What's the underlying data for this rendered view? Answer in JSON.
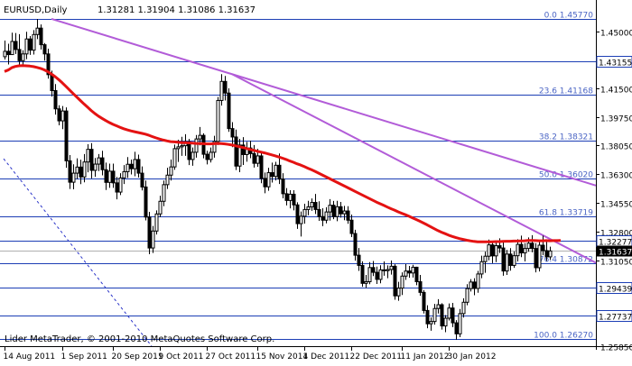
{
  "header": {
    "symbol": "EURUSD,Daily",
    "ohlc": "1.31281 1.31904 1.31086 1.31637"
  },
  "footer": {
    "copyright": "Lider MetaTrader, © 2001-2010 MetaQuotes Software Corp."
  },
  "colors": {
    "background": "#ffffff",
    "frame": "#000000",
    "candle": "#000000",
    "moving_average": "#e41212",
    "trendline": "#b25cd8",
    "fib_line": "#1c3eb5",
    "fib_label": "#4a64c4",
    "crosshair": "#2a34c8",
    "current_price_bg": "#000000",
    "current_price_fg": "#ffffff",
    "level_box_bg": "#ffffff"
  },
  "chart_data": {
    "type": "candlestick",
    "title": "EURUSD,Daily",
    "ylim": [
      1.2585,
      1.4668
    ],
    "y_ticks": [
      "1.45000",
      "1.43155",
      "1.41500",
      "1.39750",
      "1.38050",
      "1.36300",
      "1.34550",
      "1.32800",
      "1.32277",
      "1.31637",
      "1.31050",
      "1.29439",
      "1.27737",
      "1.25850"
    ],
    "x_ticks": [
      "14 Aug 2011",
      "1 Sep 2011",
      "20 Sep 2011",
      "9 Oct 2011",
      "27 Oct 2011",
      "15 Nov 2011",
      "4 Dec 2011",
      "22 Dec 2011",
      "11 Jan 2012",
      "30 Jan 2012"
    ],
    "current_price": "1.31637",
    "highlighted_levels": [
      "1.43155",
      "1.32277",
      "1.29439",
      "1.27737"
    ],
    "fibonacci_levels": [
      {
        "label": "0.0 1.45770",
        "price": 1.4577
      },
      {
        "label": "23.6 1.41168",
        "price": 1.41168
      },
      {
        "label": "38.2 1.38321",
        "price": 1.38321
      },
      {
        "label": "50.0 1.36020",
        "price": 1.3602
      },
      {
        "label": "61.8 1.33719",
        "price": 1.33719
      },
      {
        "label": "76.4 1.30872",
        "price": 1.30872
      },
      {
        "label": "100.0 1.26270",
        "price": 1.2627
      }
    ],
    "ohlc": [
      [
        1.4345,
        1.4443,
        1.4328,
        1.4378
      ],
      [
        1.4378,
        1.4424,
        1.4298,
        1.4358
      ],
      [
        1.4358,
        1.4491,
        1.4356,
        1.4438
      ],
      [
        1.4438,
        1.4489,
        1.4362,
        1.4389
      ],
      [
        1.4389,
        1.4482,
        1.4296,
        1.4321
      ],
      [
        1.4321,
        1.4384,
        1.4298,
        1.4362
      ],
      [
        1.4362,
        1.4497,
        1.433,
        1.4453
      ],
      [
        1.4453,
        1.4471,
        1.4356,
        1.4385
      ],
      [
        1.4385,
        1.4507,
        1.4358,
        1.448
      ],
      [
        1.448,
        1.4575,
        1.4452,
        1.4519
      ],
      [
        1.4519,
        1.4541,
        1.4389,
        1.4418
      ],
      [
        1.4418,
        1.4428,
        1.4321,
        1.4362
      ],
      [
        1.4362,
        1.4394,
        1.4212,
        1.4236
      ],
      [
        1.4236,
        1.426,
        1.4103,
        1.4139
      ],
      [
        1.4139,
        1.4179,
        1.3993,
        1.4028
      ],
      [
        1.4028,
        1.405,
        1.3928,
        1.3955
      ],
      [
        1.3955,
        1.4045,
        1.3905,
        1.4015
      ],
      [
        1.4015,
        1.4037,
        1.367,
        1.3712
      ],
      [
        1.3712,
        1.3747,
        1.3541,
        1.3582
      ],
      [
        1.3582,
        1.3691,
        1.3539,
        1.3637
      ],
      [
        1.3637,
        1.3727,
        1.3602,
        1.3674
      ],
      [
        1.3674,
        1.3719,
        1.357,
        1.3614
      ],
      [
        1.3614,
        1.3753,
        1.3581,
        1.3705
      ],
      [
        1.3705,
        1.3813,
        1.3642,
        1.3782
      ],
      [
        1.3782,
        1.382,
        1.3605,
        1.3654
      ],
      [
        1.3654,
        1.3729,
        1.3615,
        1.3692
      ],
      [
        1.3692,
        1.3753,
        1.365,
        1.373
      ],
      [
        1.373,
        1.3773,
        1.3624,
        1.3658
      ],
      [
        1.3658,
        1.3701,
        1.3535,
        1.3581
      ],
      [
        1.3581,
        1.3695,
        1.3548,
        1.3649
      ],
      [
        1.3649,
        1.3695,
        1.3548,
        1.3578
      ],
      [
        1.3578,
        1.3614,
        1.3478,
        1.3522
      ],
      [
        1.3522,
        1.3637,
        1.3504,
        1.3608
      ],
      [
        1.3608,
        1.3686,
        1.3571,
        1.3646
      ],
      [
        1.3646,
        1.3735,
        1.3608,
        1.3691
      ],
      [
        1.3691,
        1.372,
        1.3629,
        1.3664
      ],
      [
        1.3664,
        1.3767,
        1.3618,
        1.372
      ],
      [
        1.372,
        1.375,
        1.3611,
        1.3637
      ],
      [
        1.3637,
        1.3678,
        1.3532,
        1.3553
      ],
      [
        1.3553,
        1.3592,
        1.335,
        1.337
      ],
      [
        1.337,
        1.3402,
        1.3144,
        1.3182
      ],
      [
        1.3182,
        1.3316,
        1.3152,
        1.3285
      ],
      [
        1.3285,
        1.3411,
        1.3264,
        1.3389
      ],
      [
        1.3389,
        1.35,
        1.337,
        1.3466
      ],
      [
        1.3466,
        1.3592,
        1.3436,
        1.3567
      ],
      [
        1.3567,
        1.367,
        1.3541,
        1.3625
      ],
      [
        1.3625,
        1.372,
        1.3592,
        1.3675
      ],
      [
        1.3675,
        1.3811,
        1.3657,
        1.3786
      ],
      [
        1.3786,
        1.384,
        1.3705,
        1.3797
      ],
      [
        1.3797,
        1.3858,
        1.3742,
        1.3804
      ],
      [
        1.3804,
        1.3874,
        1.3742,
        1.3828
      ],
      [
        1.3828,
        1.3845,
        1.3686,
        1.372
      ],
      [
        1.372,
        1.3793,
        1.3682,
        1.3764
      ],
      [
        1.3764,
        1.3869,
        1.3731,
        1.3845
      ],
      [
        1.3845,
        1.3918,
        1.3806,
        1.3867
      ],
      [
        1.3867,
        1.3879,
        1.3727,
        1.3752
      ],
      [
        1.3752,
        1.3773,
        1.369,
        1.372
      ],
      [
        1.372,
        1.3793,
        1.3702,
        1.3764
      ],
      [
        1.3764,
        1.3864,
        1.3731,
        1.383
      ],
      [
        1.383,
        1.41,
        1.3809,
        1.4079
      ],
      [
        1.4079,
        1.4239,
        1.4048,
        1.4195
      ],
      [
        1.4195,
        1.4228,
        1.4079,
        1.4124
      ],
      [
        1.4124,
        1.4153,
        1.3888,
        1.3908
      ],
      [
        1.3908,
        1.3947,
        1.3795,
        1.3857
      ],
      [
        1.3857,
        1.3902,
        1.3656,
        1.368
      ],
      [
        1.368,
        1.3846,
        1.3643,
        1.3808
      ],
      [
        1.3808,
        1.3856,
        1.3687,
        1.375
      ],
      [
        1.375,
        1.3827,
        1.3707,
        1.379
      ],
      [
        1.379,
        1.3835,
        1.3728,
        1.3756
      ],
      [
        1.3756,
        1.3808,
        1.3671,
        1.3697
      ],
      [
        1.3697,
        1.3785,
        1.3676,
        1.3742
      ],
      [
        1.3742,
        1.3759,
        1.3576,
        1.3605
      ],
      [
        1.3605,
        1.3641,
        1.3515,
        1.3554
      ],
      [
        1.3554,
        1.367,
        1.353,
        1.364
      ],
      [
        1.364,
        1.3701,
        1.358,
        1.3617
      ],
      [
        1.3617,
        1.3706,
        1.3593,
        1.3685
      ],
      [
        1.3685,
        1.3757,
        1.3571,
        1.3601
      ],
      [
        1.3601,
        1.3637,
        1.3484,
        1.3512
      ],
      [
        1.3512,
        1.3546,
        1.3441,
        1.3471
      ],
      [
        1.3471,
        1.3533,
        1.3423,
        1.3509
      ],
      [
        1.3509,
        1.3533,
        1.3411,
        1.3444
      ],
      [
        1.3444,
        1.346,
        1.3298,
        1.333
      ],
      [
        1.333,
        1.3404,
        1.3252,
        1.3375
      ],
      [
        1.3375,
        1.3451,
        1.333,
        1.3416
      ],
      [
        1.3416,
        1.3469,
        1.3381,
        1.3432
      ],
      [
        1.3432,
        1.3483,
        1.3408,
        1.3459
      ],
      [
        1.3459,
        1.3511,
        1.3389,
        1.3416
      ],
      [
        1.3416,
        1.3466,
        1.3347,
        1.3373
      ],
      [
        1.3373,
        1.3424,
        1.3315,
        1.3351
      ],
      [
        1.3351,
        1.343,
        1.3332,
        1.3401
      ],
      [
        1.3401,
        1.3479,
        1.3348,
        1.3442
      ],
      [
        1.3442,
        1.3468,
        1.3357,
        1.3373
      ],
      [
        1.3373,
        1.3469,
        1.3345,
        1.3433
      ],
      [
        1.3433,
        1.3462,
        1.3367,
        1.339
      ],
      [
        1.339,
        1.3438,
        1.3351,
        1.3407
      ],
      [
        1.3407,
        1.3436,
        1.3329,
        1.3351
      ],
      [
        1.3351,
        1.3385,
        1.3248,
        1.327
      ],
      [
        1.327,
        1.3293,
        1.3105,
        1.3138
      ],
      [
        1.3138,
        1.3182,
        1.3043,
        1.3076
      ],
      [
        1.3076,
        1.3101,
        1.2946,
        1.2967
      ],
      [
        1.2967,
        1.3018,
        1.2939,
        1.2977
      ],
      [
        1.2977,
        1.3096,
        1.2962,
        1.3063
      ],
      [
        1.3063,
        1.3103,
        1.3011,
        1.3034
      ],
      [
        1.3034,
        1.3069,
        1.2963,
        1.2991
      ],
      [
        1.2991,
        1.3077,
        1.2967,
        1.3049
      ],
      [
        1.3049,
        1.31,
        1.3013,
        1.3044
      ],
      [
        1.3044,
        1.3076,
        1.2998,
        1.3051
      ],
      [
        1.3051,
        1.3106,
        1.302,
        1.3071
      ],
      [
        1.3071,
        1.3083,
        1.2867,
        1.2891
      ],
      [
        1.2891,
        1.2976,
        1.2861,
        1.2938
      ],
      [
        1.2938,
        1.3034,
        1.2896,
        1.3011
      ],
      [
        1.3011,
        1.3084,
        1.2988,
        1.3042
      ],
      [
        1.3042,
        1.3073,
        1.3001,
        1.303
      ],
      [
        1.303,
        1.308,
        1.3002,
        1.3065
      ],
      [
        1.3065,
        1.3068,
        1.2956,
        1.2977
      ],
      [
        1.2977,
        1.3018,
        1.2891,
        1.2912
      ],
      [
        1.2912,
        1.2926,
        1.2784,
        1.2802
      ],
      [
        1.2802,
        1.2834,
        1.2694,
        1.2721
      ],
      [
        1.2721,
        1.276,
        1.2679,
        1.2735
      ],
      [
        1.2735,
        1.2842,
        1.2716,
        1.2814
      ],
      [
        1.2814,
        1.2871,
        1.2784,
        1.2837
      ],
      [
        1.2837,
        1.2846,
        1.2686,
        1.2708
      ],
      [
        1.2708,
        1.2774,
        1.267,
        1.2755
      ],
      [
        1.2755,
        1.2845,
        1.2741,
        1.2817
      ],
      [
        1.2817,
        1.2848,
        1.2701,
        1.2727
      ],
      [
        1.2727,
        1.2743,
        1.2624,
        1.266
      ],
      [
        1.266,
        1.2811,
        1.264,
        1.2783
      ],
      [
        1.2783,
        1.2876,
        1.2759,
        1.2852
      ],
      [
        1.2852,
        1.2962,
        1.2834,
        1.2935
      ],
      [
        1.2935,
        1.2993,
        1.2917,
        1.2975
      ],
      [
        1.2975,
        1.2998,
        1.2895,
        1.2936
      ],
      [
        1.2936,
        1.3043,
        1.291,
        1.3024
      ],
      [
        1.3024,
        1.3135,
        1.2998,
        1.3099
      ],
      [
        1.3099,
        1.316,
        1.3031,
        1.3132
      ],
      [
        1.3132,
        1.3233,
        1.3107,
        1.3201
      ],
      [
        1.3201,
        1.322,
        1.309,
        1.3134
      ],
      [
        1.3134,
        1.3222,
        1.3096,
        1.3196
      ],
      [
        1.3196,
        1.3241,
        1.3152,
        1.3182
      ],
      [
        1.3182,
        1.3223,
        1.3013,
        1.3042
      ],
      [
        1.3042,
        1.317,
        1.3018,
        1.3145
      ],
      [
        1.3145,
        1.3181,
        1.3044,
        1.3076
      ],
      [
        1.3076,
        1.3161,
        1.3061,
        1.3135
      ],
      [
        1.3135,
        1.3235,
        1.31,
        1.3204
      ],
      [
        1.3204,
        1.3257,
        1.3126,
        1.3152
      ],
      [
        1.3152,
        1.3211,
        1.31,
        1.3179
      ],
      [
        1.3179,
        1.3246,
        1.3159,
        1.3211
      ],
      [
        1.3211,
        1.326,
        1.3156,
        1.3179
      ],
      [
        1.3179,
        1.3211,
        1.3034,
        1.3062
      ],
      [
        1.3062,
        1.3229,
        1.3039,
        1.3199
      ],
      [
        1.3199,
        1.3257,
        1.3138,
        1.3166
      ],
      [
        1.3166,
        1.3222,
        1.3103,
        1.3128
      ],
      [
        1.3128,
        1.319,
        1.3109,
        1.3164
      ]
    ],
    "moving_average": [
      1.4255,
      1.4264,
      1.4278,
      1.4286,
      1.429,
      1.4291,
      1.429,
      1.4288,
      1.4285,
      1.428,
      1.4274,
      1.4265,
      1.4254,
      1.424,
      1.4224,
      1.4206,
      1.4186,
      1.4165,
      1.4143,
      1.4121,
      1.41,
      1.4079,
      1.4058,
      1.4038,
      1.4018,
      1.4,
      1.3984,
      1.397,
      1.3957,
      1.3945,
      1.3934,
      1.3925,
      1.3916,
      1.3907,
      1.39,
      1.3894,
      1.3889,
      1.3884,
      1.3879,
      1.3874,
      1.3867,
      1.3859,
      1.3851,
      1.3844,
      1.3838,
      1.3833,
      1.3829,
      1.3827,
      1.3825,
      1.3823,
      1.3822,
      1.3821,
      1.382,
      1.3818,
      1.3817,
      1.3816,
      1.3815,
      1.3815,
      1.3816,
      1.3818,
      1.3817,
      1.3815,
      1.3812,
      1.3808,
      1.3803,
      1.3798,
      1.3793,
      1.3787,
      1.3781,
      1.3776,
      1.377,
      1.3765,
      1.376,
      1.3754,
      1.3748,
      1.3742,
      1.3735,
      1.3728,
      1.372,
      1.3711,
      1.3703,
      1.3694,
      1.3686,
      1.3677,
      1.3667,
      1.3658,
      1.3648,
      1.3637,
      1.3626,
      1.3615,
      1.3604,
      1.3593,
      1.3582,
      1.3571,
      1.356,
      1.3549,
      1.3538,
      1.3527,
      1.3516,
      1.3505,
      1.3494,
      1.3483,
      1.3472,
      1.3461,
      1.3451,
      1.3441,
      1.3431,
      1.3421,
      1.3412,
      1.3402,
      1.3393,
      1.3384,
      1.3375,
      1.3365,
      1.3355,
      1.3345,
      1.3334,
      1.3323,
      1.3311,
      1.3299,
      1.3288,
      1.3278,
      1.3269,
      1.326,
      1.3252,
      1.3245,
      1.3239,
      1.3234,
      1.3229,
      1.3225,
      1.3222,
      1.322,
      1.3219,
      1.3219,
      1.3219,
      1.322,
      1.3221,
      1.3221,
      1.3222,
      1.3223,
      1.3223,
      1.3224,
      1.3224,
      1.3225,
      1.3226,
      1.3228,
      1.3228,
      1.3227,
      1.3226,
      1.3226,
      1.3227,
      1.3226,
      1.3227,
      1.3227,
      1.3228
    ]
  }
}
